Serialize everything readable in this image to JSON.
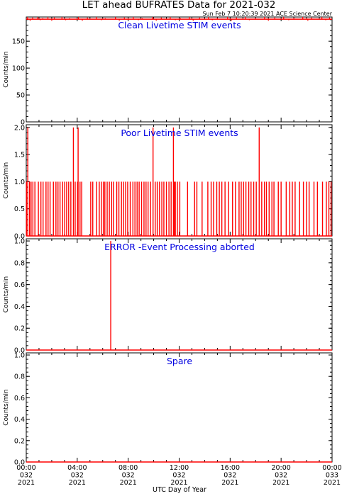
{
  "header": {
    "title": "LET ahead BUFRATES Data for 2021-032",
    "subtitle": "Sun Feb  7 10:20:39 2021 ACE Science Center"
  },
  "footer": {
    "xlabel": "UTC Day of Year"
  },
  "colors": {
    "trace": "#ff0000",
    "panel_label": "#0000e0",
    "axes": "#000000"
  },
  "x_ticks": [
    {
      "hour": 0,
      "lines": [
        "00:00",
        "032",
        "2021"
      ]
    },
    {
      "hour": 4,
      "lines": [
        "04:00",
        "032",
        "2021"
      ]
    },
    {
      "hour": 8,
      "lines": [
        "08:00",
        "032",
        "2021"
      ]
    },
    {
      "hour": 12,
      "lines": [
        "12:00",
        "032",
        "2021"
      ]
    },
    {
      "hour": 16,
      "lines": [
        "16:00",
        "032",
        "2021"
      ]
    },
    {
      "hour": 20,
      "lines": [
        "20:00",
        "032",
        "2021"
      ]
    },
    {
      "hour": 24,
      "lines": [
        "00:00",
        "033",
        "2021"
      ]
    }
  ],
  "chart_data": [
    {
      "type": "line",
      "title": "Clean Livetime STIM events",
      "ylabel": "Counts/min",
      "ylim": [
        0,
        195
      ],
      "yticks": [
        0,
        50,
        100,
        150
      ],
      "ytick_labels": [
        "0",
        "50",
        "100",
        "150"
      ],
      "xlim_hours": [
        0,
        24
      ],
      "series": [
        {
          "base_value": 191,
          "spikes_up": [
            [
              0.1,
              195
            ],
            [
              0.5,
              194
            ],
            [
              0.9,
              195
            ],
            [
              1.3,
              193
            ],
            [
              1.7,
              195
            ],
            [
              2.2,
              194
            ],
            [
              2.8,
              195
            ],
            [
              3.4,
              193
            ],
            [
              4.1,
              195
            ],
            [
              4.8,
              194
            ],
            [
              5.5,
              195
            ],
            [
              6.2,
              193
            ],
            [
              7.0,
              195
            ],
            [
              7.7,
              194
            ],
            [
              8.4,
              195
            ],
            [
              9.1,
              193
            ],
            [
              9.9,
              195
            ],
            [
              10.6,
              194
            ],
            [
              11.3,
              195
            ],
            [
              12.1,
              193
            ],
            [
              12.8,
              195
            ],
            [
              13.6,
              194
            ],
            [
              14.3,
              195
            ],
            [
              15.0,
              193
            ],
            [
              15.8,
              195
            ],
            [
              16.5,
              194
            ],
            [
              17.2,
              195
            ],
            [
              18.0,
              193
            ],
            [
              18.7,
              195
            ],
            [
              19.5,
              194
            ],
            [
              20.2,
              195
            ],
            [
              21.0,
              193
            ],
            [
              21.7,
              195
            ],
            [
              22.4,
              194
            ],
            [
              23.2,
              195
            ],
            [
              23.8,
              194
            ]
          ],
          "dips_down": [
            [
              0.3,
              188
            ],
            [
              1.1,
              189
            ],
            [
              2.0,
              188
            ],
            [
              3.1,
              189
            ],
            [
              4.4,
              188
            ],
            [
              5.9,
              189
            ],
            [
              7.3,
              188
            ],
            [
              8.8,
              189
            ],
            [
              10.2,
              188
            ],
            [
              11.7,
              189
            ],
            [
              13.1,
              188
            ],
            [
              14.6,
              189
            ],
            [
              16.1,
              188
            ],
            [
              17.5,
              189
            ],
            [
              19.0,
              188
            ],
            [
              20.6,
              189
            ],
            [
              22.1,
              188
            ],
            [
              23.5,
              189
            ]
          ]
        }
      ]
    },
    {
      "type": "line",
      "title": "Poor Livetime STIM events",
      "ylabel": "Counts/min",
      "ylim": [
        0,
        2.05
      ],
      "yticks": [
        0,
        0.5,
        1,
        1.5,
        2
      ],
      "ytick_labels": [
        "0.0",
        "0.5",
        "1.0",
        "1.5",
        "2.0"
      ],
      "xlim_hours": [
        0,
        24
      ],
      "series": [
        {
          "base_value": 0,
          "events": [
            [
              0.02,
              1
            ],
            [
              0.12,
              2
            ],
            [
              0.26,
              1
            ],
            [
              0.38,
              1
            ],
            [
              0.52,
              1
            ],
            [
              0.68,
              1
            ],
            [
              0.95,
              1
            ],
            [
              1.15,
              1
            ],
            [
              1.32,
              1
            ],
            [
              1.55,
              1
            ],
            [
              1.71,
              1
            ],
            [
              1.87,
              1
            ],
            [
              2.13,
              1
            ],
            [
              2.33,
              1
            ],
            [
              2.49,
              1
            ],
            [
              2.65,
              1
            ],
            [
              2.85,
              1
            ],
            [
              3.02,
              1
            ],
            [
              3.17,
              1
            ],
            [
              3.33,
              1
            ],
            [
              3.5,
              1
            ],
            [
              3.7,
              2
            ],
            [
              3.84,
              1
            ],
            [
              4.02,
              1
            ],
            [
              4.07,
              2
            ],
            [
              4.22,
              1
            ],
            [
              4.35,
              1
            ],
            [
              5.06,
              1
            ],
            [
              5.22,
              1
            ],
            [
              5.52,
              1
            ],
            [
              5.73,
              1
            ],
            [
              5.89,
              1
            ],
            [
              6.05,
              1
            ],
            [
              6.17,
              1
            ],
            [
              6.35,
              1
            ],
            [
              6.52,
              1
            ],
            [
              6.7,
              1
            ],
            [
              6.84,
              1
            ],
            [
              7.1,
              1
            ],
            [
              7.27,
              1
            ],
            [
              7.47,
              1
            ],
            [
              7.63,
              1
            ],
            [
              7.8,
              1
            ],
            [
              7.96,
              1
            ],
            [
              8.16,
              1
            ],
            [
              8.37,
              1
            ],
            [
              8.53,
              1
            ],
            [
              8.7,
              1
            ],
            [
              8.86,
              1
            ],
            [
              9.05,
              1
            ],
            [
              9.24,
              1
            ],
            [
              9.4,
              1
            ],
            [
              9.56,
              1
            ],
            [
              9.75,
              1
            ],
            [
              9.95,
              2
            ],
            [
              10.12,
              1
            ],
            [
              10.28,
              1
            ],
            [
              10.46,
              1
            ],
            [
              10.64,
              1
            ],
            [
              10.8,
              1
            ],
            [
              11.0,
              1
            ],
            [
              11.2,
              1
            ],
            [
              11.37,
              1
            ],
            [
              11.55,
              2
            ],
            [
              11.62,
              1
            ],
            [
              11.7,
              1
            ],
            [
              11.86,
              1
            ],
            [
              12.05,
              1
            ],
            [
              12.66,
              1
            ],
            [
              13.21,
              1
            ],
            [
              13.39,
              1
            ],
            [
              13.8,
              1
            ],
            [
              14.25,
              1
            ],
            [
              14.51,
              1
            ],
            [
              14.7,
              1
            ],
            [
              14.95,
              1
            ],
            [
              15.15,
              1
            ],
            [
              15.35,
              1
            ],
            [
              15.6,
              1
            ],
            [
              15.88,
              1
            ],
            [
              16.19,
              1
            ],
            [
              16.42,
              1
            ],
            [
              16.7,
              1
            ],
            [
              16.87,
              1
            ],
            [
              17.05,
              1
            ],
            [
              17.24,
              1
            ],
            [
              17.46,
              1
            ],
            [
              17.64,
              1
            ],
            [
              17.85,
              1
            ],
            [
              18.05,
              1
            ],
            [
              18.28,
              2
            ],
            [
              18.48,
              1
            ],
            [
              18.69,
              1
            ],
            [
              18.85,
              1
            ],
            [
              19.06,
              1
            ],
            [
              19.28,
              1
            ],
            [
              19.44,
              1
            ],
            [
              19.78,
              1
            ],
            [
              20.0,
              1
            ],
            [
              20.4,
              1
            ],
            [
              20.68,
              1
            ],
            [
              20.88,
              1
            ],
            [
              21.1,
              1
            ],
            [
              21.45,
              1
            ],
            [
              21.75,
              1
            ],
            [
              22.0,
              1
            ],
            [
              22.2,
              1
            ],
            [
              22.58,
              1
            ],
            [
              22.85,
              1
            ],
            [
              23.25,
              1
            ],
            [
              23.55,
              1
            ],
            [
              23.75,
              1
            ],
            [
              23.92,
              1
            ]
          ]
        }
      ]
    },
    {
      "type": "line",
      "title": "ERROR -Event Processing aborted",
      "ylabel": "Counts/min",
      "ylim": [
        0,
        1.02
      ],
      "yticks": [
        0,
        0.2,
        0.4,
        0.6,
        0.8,
        1
      ],
      "ytick_labels": [
        "0.0",
        "0.2",
        "0.4",
        "0.6",
        "0.8",
        "1.0"
      ],
      "xlim_hours": [
        0,
        24
      ],
      "series": [
        {
          "base_value": 0,
          "events": [
            [
              6.63,
              1
            ]
          ]
        }
      ]
    },
    {
      "type": "line",
      "title": "Spare",
      "ylabel": "Counts/min",
      "ylim": [
        0,
        1.02
      ],
      "yticks": [
        0,
        0.2,
        0.4,
        0.6,
        0.8,
        1
      ],
      "ytick_labels": [
        "0.0",
        "0.2",
        "0.4",
        "0.6",
        "0.8",
        "1.0"
      ],
      "xlim_hours": [
        0,
        24
      ],
      "series": [
        {
          "base_value": 0,
          "events": []
        }
      ]
    }
  ]
}
